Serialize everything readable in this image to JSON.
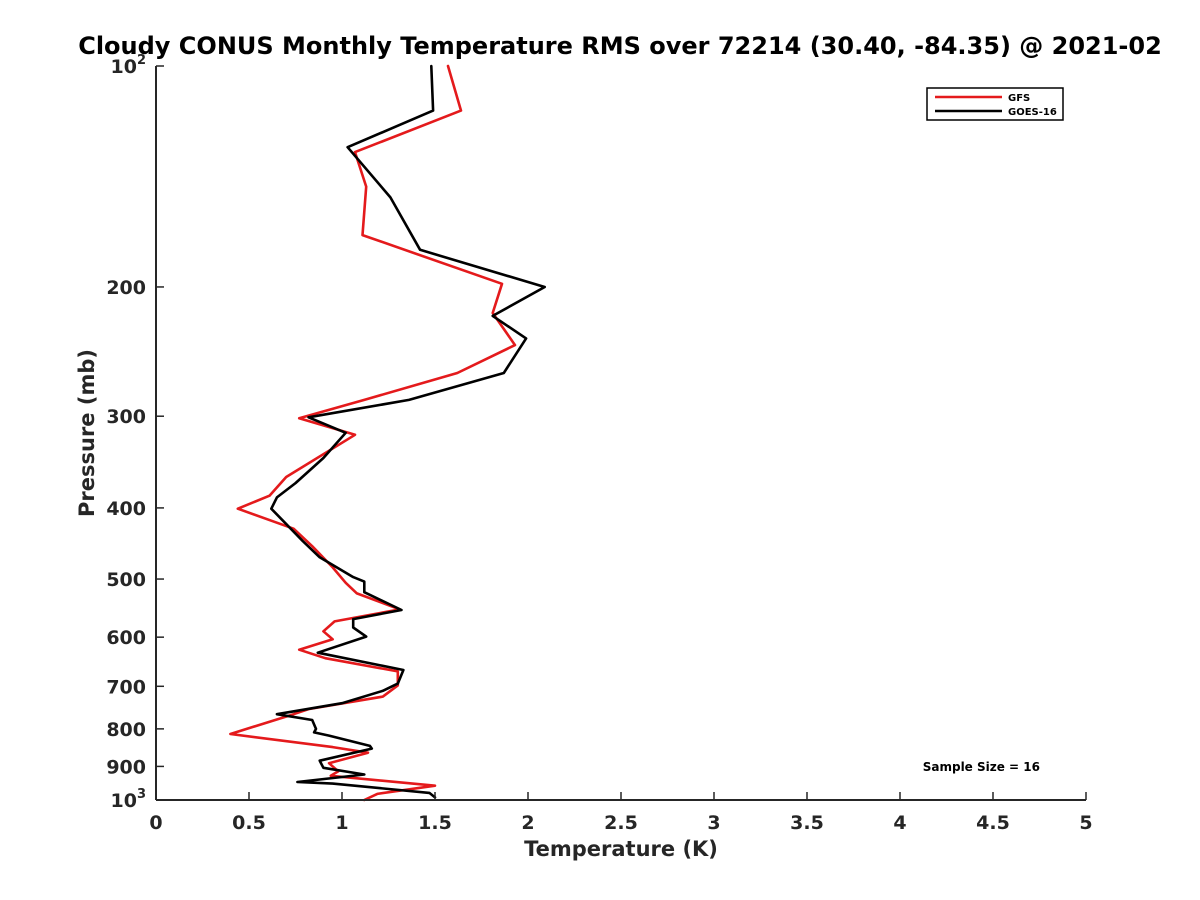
{
  "chart_data": {
    "type": "line",
    "title": "Cloudy CONUS Monthly Temperature RMS over 72214 (30.40, -84.35) @ 2021-02",
    "xlabel": "Temperature (K)",
    "ylabel": "Pressure (mb)",
    "xlim": [
      0,
      5
    ],
    "ylim": [
      100,
      1000
    ],
    "yscale": "log",
    "y_reversed": true,
    "x_ticks": [
      0,
      0.5,
      1,
      1.5,
      2,
      2.5,
      3,
      3.5,
      4,
      4.5,
      5
    ],
    "x_tick_labels": [
      "0",
      "0.5",
      "1",
      "1.5",
      "2",
      "2.5",
      "3",
      "3.5",
      "4",
      "4.5",
      "5"
    ],
    "y_ticks": [
      {
        "value": 100,
        "base": "10",
        "exp": "2"
      },
      {
        "value": 200,
        "label": "200"
      },
      {
        "value": 300,
        "label": "300"
      },
      {
        "value": 400,
        "label": "400"
      },
      {
        "value": 500,
        "label": "500"
      },
      {
        "value": 600,
        "label": "600"
      },
      {
        "value": 700,
        "label": "700"
      },
      {
        "value": 800,
        "label": "800"
      },
      {
        "value": 900,
        "label": "900"
      },
      {
        "value": 1000,
        "base": "10",
        "exp": "3"
      }
    ],
    "legend_position": "top-right",
    "annotation": "Sample Size = 16",
    "series": [
      {
        "name": "GFS",
        "color": "#e41a1c",
        "points": [
          [
            1.57,
            100
          ],
          [
            1.64,
            115
          ],
          [
            1.07,
            131
          ],
          [
            1.13,
            146
          ],
          [
            1.11,
            170
          ],
          [
            1.86,
            198
          ],
          [
            1.81,
            217
          ],
          [
            1.93,
            240
          ],
          [
            1.62,
            262
          ],
          [
            1.12,
            285
          ],
          [
            0.77,
            302
          ],
          [
            1.07,
            318
          ],
          [
            0.7,
            363
          ],
          [
            0.61,
            385
          ],
          [
            0.44,
            401
          ],
          [
            0.74,
            427
          ],
          [
            0.84,
            451
          ],
          [
            0.95,
            482
          ],
          [
            1.02,
            506
          ],
          [
            1.08,
            523
          ],
          [
            1.31,
            550
          ],
          [
            0.96,
            571
          ],
          [
            0.9,
            589
          ],
          [
            0.95,
            604
          ],
          [
            0.77,
            624
          ],
          [
            0.91,
            641
          ],
          [
            1.3,
            668
          ],
          [
            1.3,
            698
          ],
          [
            1.22,
            723
          ],
          [
            0.82,
            752
          ],
          [
            0.74,
            764
          ],
          [
            0.4,
            813
          ],
          [
            0.95,
            847
          ],
          [
            1.14,
            862
          ],
          [
            0.93,
            891
          ],
          [
            0.98,
            914
          ],
          [
            0.94,
            927
          ],
          [
            1.5,
            956
          ],
          [
            1.19,
            981
          ],
          [
            1.12,
            1000
          ]
        ]
      },
      {
        "name": "GOES-16",
        "color": "#000000",
        "points": [
          [
            1.48,
            100
          ],
          [
            1.49,
            115
          ],
          [
            1.03,
            129
          ],
          [
            1.26,
            151
          ],
          [
            1.42,
            178
          ],
          [
            2.09,
            200
          ],
          [
            1.81,
            219
          ],
          [
            1.99,
            235
          ],
          [
            1.87,
            262
          ],
          [
            1.36,
            285
          ],
          [
            0.82,
            301
          ],
          [
            1.02,
            316
          ],
          [
            0.9,
            342
          ],
          [
            0.75,
            370
          ],
          [
            0.65,
            387
          ],
          [
            0.62,
            401
          ],
          [
            0.79,
            444
          ],
          [
            0.88,
            467
          ],
          [
            1.06,
            497
          ],
          [
            1.12,
            504
          ],
          [
            1.12,
            521
          ],
          [
            1.32,
            551
          ],
          [
            1.06,
            567
          ],
          [
            1.06,
            582
          ],
          [
            1.13,
            599
          ],
          [
            0.87,
            630
          ],
          [
            1.33,
            665
          ],
          [
            1.3,
            694
          ],
          [
            1.22,
            710
          ],
          [
            1.0,
            738
          ],
          [
            0.65,
            764
          ],
          [
            0.84,
            778
          ],
          [
            0.86,
            800
          ],
          [
            0.85,
            809
          ],
          [
            0.93,
            817
          ],
          [
            1.15,
            844
          ],
          [
            1.16,
            851
          ],
          [
            0.88,
            884
          ],
          [
            0.9,
            904
          ],
          [
            1.12,
            923
          ],
          [
            0.76,
            945
          ],
          [
            0.95,
            950
          ],
          [
            1.47,
            978
          ],
          [
            1.5,
            992
          ]
        ]
      }
    ]
  }
}
